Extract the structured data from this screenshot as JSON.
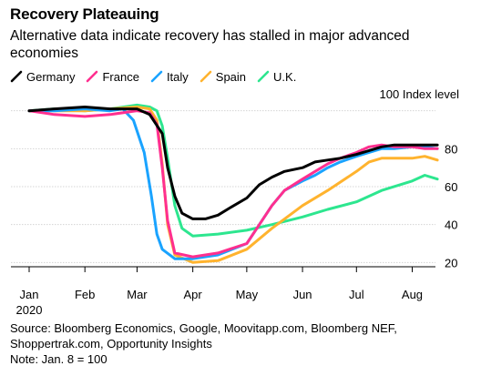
{
  "header": {
    "title": "Recovery Plateauing",
    "subtitle": "Alternative data indicate recovery has stalled in major advanced economies"
  },
  "footer": {
    "source": "Source: Bloomberg Economics, Google, Moovitapp.com, Bloomberg NEF, Shoppertrak.com, Opportunity Insights",
    "note": "Note: Jan. 8 = 100"
  },
  "chart_data": {
    "type": "line",
    "title": "Recovery Plateauing",
    "subtitle": "Alternative data indicate recovery has stalled in major advanced economies",
    "ylabel": "100 Index level",
    "xlabel": "",
    "ylim": [
      12,
      108
    ],
    "yticks": [
      20,
      40,
      60,
      80
    ],
    "ytick_labels": [
      "20",
      "40",
      "60",
      "80"
    ],
    "xlim": [
      "2020-01-01",
      "2020-08-20"
    ],
    "xticks": [
      "2020-01-01",
      "2020-02-01",
      "2020-03-01",
      "2020-04-01",
      "2020-05-01",
      "2020-06-01",
      "2020-07-01",
      "2020-08-01"
    ],
    "xtick_labels": [
      "Jan",
      "Feb",
      "Mar",
      "Apr",
      "May",
      "Jun",
      "Jul",
      "Aug"
    ],
    "xtick_sublabel": "2020",
    "grid": true,
    "legend_position": "top-left",
    "series": [
      {
        "name": "Germany",
        "color": "#000000",
        "x": [
          "2020-01-01",
          "2020-01-15",
          "2020-02-01",
          "2020-02-15",
          "2020-03-01",
          "2020-03-08",
          "2020-03-15",
          "2020-03-18",
          "2020-03-22",
          "2020-03-26",
          "2020-04-01",
          "2020-04-08",
          "2020-04-15",
          "2020-04-22",
          "2020-05-01",
          "2020-05-08",
          "2020-05-15",
          "2020-05-22",
          "2020-06-01",
          "2020-06-08",
          "2020-06-15",
          "2020-06-22",
          "2020-07-01",
          "2020-07-08",
          "2020-07-15",
          "2020-07-22",
          "2020-08-01",
          "2020-08-08",
          "2020-08-15"
        ],
        "y": [
          100,
          101,
          102,
          101,
          101,
          98,
          88,
          70,
          55,
          46,
          43,
          43,
          45,
          49,
          54,
          61,
          65,
          68,
          70,
          73,
          74,
          75,
          77,
          79,
          81,
          82,
          82,
          82,
          82
        ]
      },
      {
        "name": "France",
        "color": "#ff2f8f",
        "x": [
          "2020-01-01",
          "2020-01-15",
          "2020-02-01",
          "2020-02-15",
          "2020-03-01",
          "2020-03-08",
          "2020-03-12",
          "2020-03-15",
          "2020-03-18",
          "2020-03-22",
          "2020-04-01",
          "2020-04-15",
          "2020-05-01",
          "2020-05-08",
          "2020-05-15",
          "2020-05-22",
          "2020-06-01",
          "2020-06-08",
          "2020-06-15",
          "2020-06-22",
          "2020-07-01",
          "2020-07-08",
          "2020-07-15",
          "2020-07-22",
          "2020-08-01",
          "2020-08-08",
          "2020-08-15"
        ],
        "y": [
          100,
          98,
          97,
          98,
          100,
          99,
          93,
          70,
          42,
          25,
          23,
          25,
          30,
          40,
          50,
          58,
          64,
          68,
          72,
          75,
          78,
          81,
          82,
          81,
          81,
          80,
          80
        ]
      },
      {
        "name": "Italy",
        "color": "#1aa3ff",
        "x": [
          "2020-01-01",
          "2020-01-15",
          "2020-02-01",
          "2020-02-15",
          "2020-02-22",
          "2020-02-28",
          "2020-03-05",
          "2020-03-09",
          "2020-03-12",
          "2020-03-15",
          "2020-03-22",
          "2020-04-01",
          "2020-04-15",
          "2020-05-01",
          "2020-05-08",
          "2020-05-15",
          "2020-05-22",
          "2020-06-01",
          "2020-06-08",
          "2020-06-15",
          "2020-06-22",
          "2020-07-01",
          "2020-07-08",
          "2020-07-15",
          "2020-07-22",
          "2020-08-01",
          "2020-08-08",
          "2020-08-15"
        ],
        "y": [
          100,
          100,
          101,
          100,
          101,
          95,
          78,
          55,
          35,
          27,
          22,
          22,
          24,
          30,
          40,
          50,
          58,
          63,
          66,
          70,
          73,
          76,
          78,
          80,
          80,
          81,
          81,
          80
        ]
      },
      {
        "name": "Spain",
        "color": "#ffb32e",
        "x": [
          "2020-01-01",
          "2020-01-15",
          "2020-02-01",
          "2020-02-15",
          "2020-03-01",
          "2020-03-08",
          "2020-03-12",
          "2020-03-15",
          "2020-03-18",
          "2020-03-22",
          "2020-04-01",
          "2020-04-15",
          "2020-05-01",
          "2020-05-15",
          "2020-06-01",
          "2020-06-15",
          "2020-07-01",
          "2020-07-08",
          "2020-07-15",
          "2020-08-01",
          "2020-08-08",
          "2020-08-15"
        ],
        "y": [
          100,
          100,
          100,
          101,
          102,
          101,
          95,
          72,
          40,
          24,
          20,
          21,
          27,
          38,
          50,
          58,
          68,
          73,
          75,
          75,
          76,
          74
        ]
      },
      {
        "name": "U.K.",
        "color": "#2de68f",
        "x": [
          "2020-01-01",
          "2020-01-15",
          "2020-02-01",
          "2020-02-15",
          "2020-03-01",
          "2020-03-08",
          "2020-03-12",
          "2020-03-15",
          "2020-03-18",
          "2020-03-22",
          "2020-03-26",
          "2020-04-01",
          "2020-04-15",
          "2020-05-01",
          "2020-05-15",
          "2020-06-01",
          "2020-06-15",
          "2020-07-01",
          "2020-07-15",
          "2020-08-01",
          "2020-08-08",
          "2020-08-15"
        ],
        "y": [
          100,
          101,
          100,
          101,
          103,
          102,
          100,
          92,
          75,
          50,
          38,
          34,
          35,
          37,
          40,
          44,
          48,
          52,
          58,
          63,
          66,
          64
        ]
      }
    ]
  }
}
